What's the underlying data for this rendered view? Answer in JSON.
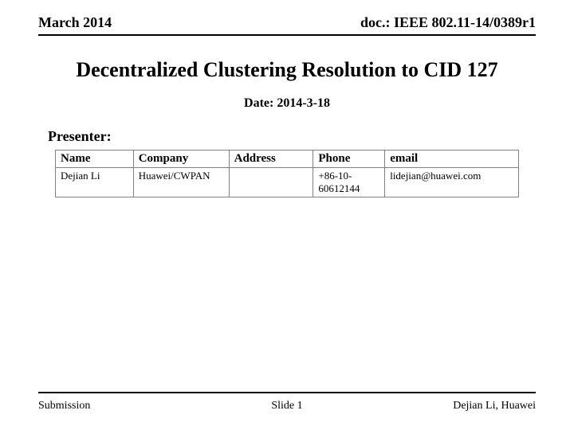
{
  "header": {
    "left": "March 2014",
    "right": "doc.: IEEE 802.11-14/0389r1"
  },
  "title": "Decentralized Clustering Resolution to CID 127",
  "date_line": "Date: 2014-3-18",
  "presenter_label": "Presenter:",
  "table": {
    "columns": [
      "Name",
      "Company",
      "Address",
      "Phone",
      "email"
    ],
    "rows": [
      [
        "Dejian Li",
        "Huawei/CWPAN",
        "",
        "+86-10-60612144",
        "lidejian@huawei.com"
      ]
    ]
  },
  "footer": {
    "left": "Submission",
    "center": "Slide 1",
    "right": "Dejian Li, Huawei"
  }
}
